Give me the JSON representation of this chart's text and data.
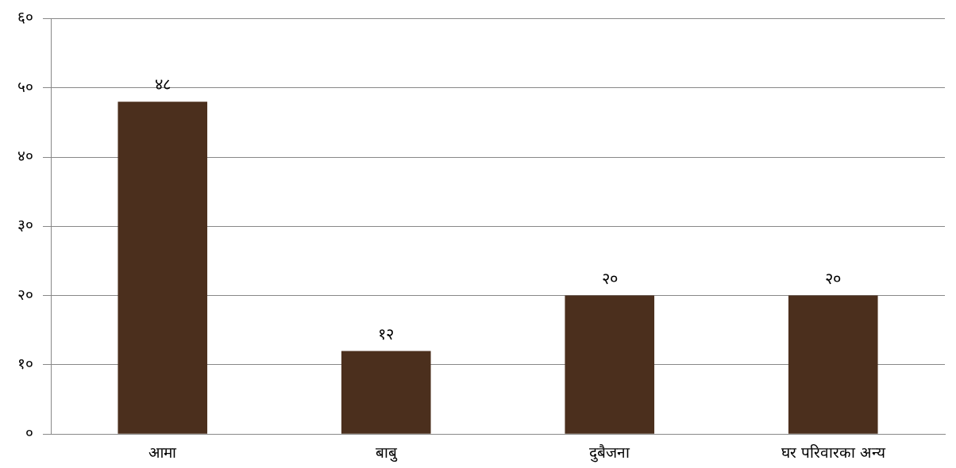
{
  "chart_data": {
    "type": "bar",
    "categories": [
      "आमा",
      "बाबु",
      "दुबैजना",
      "घर परिवारका अन्य"
    ],
    "values": [
      48,
      12,
      20,
      20
    ],
    "value_labels": [
      "४८",
      "१२",
      "२०",
      "२०"
    ],
    "color": "#4b2f1d",
    "ylim": [
      0,
      60
    ],
    "yticks": [
      {
        "value": 0,
        "label": "०"
      },
      {
        "value": 10,
        "label": "१०"
      },
      {
        "value": 20,
        "label": "२०"
      },
      {
        "value": 30,
        "label": "३०"
      },
      {
        "value": 40,
        "label": "४०"
      },
      {
        "value": 50,
        "label": "५०"
      },
      {
        "value": 60,
        "label": "६०"
      }
    ],
    "grid": "y"
  }
}
